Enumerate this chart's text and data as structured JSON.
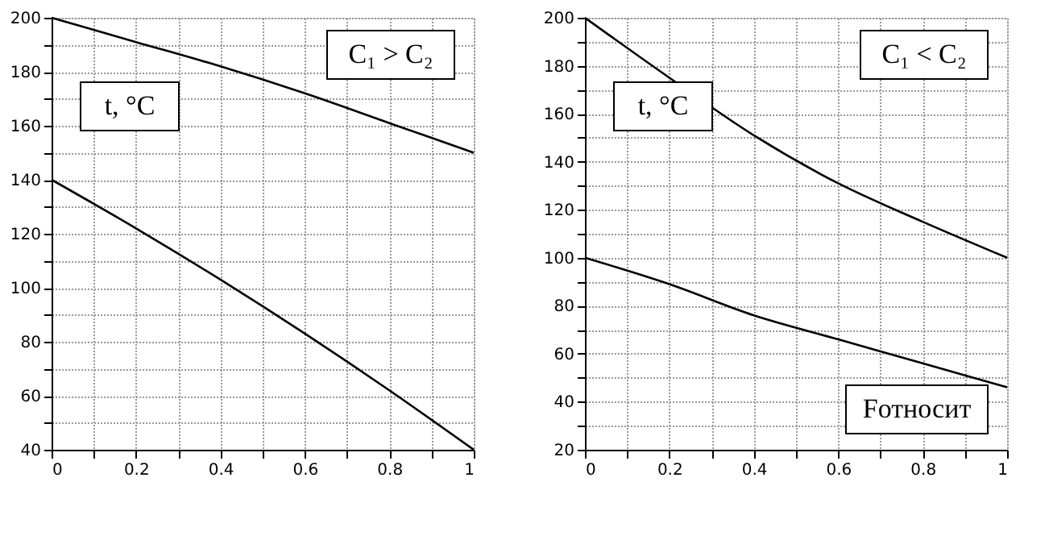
{
  "chart_data": [
    {
      "type": "line",
      "annotations": [
        "C₁ > C₂"
      ],
      "ylabel": "t, °C",
      "x": [
        0,
        0.2,
        0.4,
        0.6,
        0.8,
        1
      ],
      "series": [
        {
          "color": "#000000",
          "values": [
            200,
            191,
            182,
            172,
            161,
            150
          ]
        },
        {
          "color": "#000000",
          "values": [
            140,
            122,
            103,
            83,
            62,
            40
          ]
        }
      ],
      "xlim": [
        0,
        1
      ],
      "ylim": [
        40,
        200
      ],
      "xticks": [
        0,
        {
          "value": 0.1,
          "label": null
        },
        0.2,
        {
          "value": 0.3,
          "label": null
        },
        0.4,
        {
          "value": 0.5,
          "label": null
        },
        0.6,
        {
          "value": 0.7,
          "label": null
        },
        0.8,
        {
          "value": 0.9,
          "label": null
        },
        1
      ],
      "yticks": [
        40,
        {
          "value": 50,
          "label": null
        },
        60,
        {
          "value": 70,
          "label": null
        },
        80,
        {
          "value": 90,
          "label": null
        },
        100,
        {
          "value": 110,
          "label": null
        },
        120,
        {
          "value": 130,
          "label": null
        },
        140,
        {
          "value": 150,
          "label": null
        },
        160,
        {
          "value": 170,
          "label": null
        },
        180,
        {
          "value": 190,
          "label": null
        },
        200
      ],
      "grid": true,
      "line_style": "solid"
    },
    {
      "type": "line",
      "annotations": [
        "C₁ < C₂"
      ],
      "ylabel": "t, °C",
      "xlabel": "Fотносит",
      "x": [
        0,
        0.2,
        0.4,
        0.6,
        0.8,
        1
      ],
      "series": [
        {
          "color": "#000000",
          "values": [
            200,
            175,
            151,
            131,
            115,
            100
          ]
        },
        {
          "color": "#000000",
          "values": [
            100,
            89,
            76,
            66,
            56,
            46
          ]
        }
      ],
      "xlim": [
        0,
        1
      ],
      "ylim": [
        20,
        200
      ],
      "xticks": [
        0,
        {
          "value": 0.1,
          "label": null
        },
        0.2,
        {
          "value": 0.3,
          "label": null
        },
        0.4,
        {
          "value": 0.5,
          "label": null
        },
        0.6,
        {
          "value": 0.7,
          "label": null
        },
        0.8,
        {
          "value": 0.9,
          "label": null
        },
        1
      ],
      "yticks": [
        20,
        {
          "value": 30,
          "label": null
        },
        40,
        {
          "value": 50,
          "label": null
        },
        60,
        {
          "value": 70,
          "label": null
        },
        80,
        {
          "value": 90,
          "label": null
        },
        100,
        {
          "value": 110,
          "label": null
        },
        120,
        {
          "value": 130,
          "label": null
        },
        140,
        {
          "value": 150,
          "label": null
        },
        160,
        {
          "value": 170,
          "label": null
        },
        180,
        {
          "value": 190,
          "label": null
        },
        200
      ],
      "grid": true,
      "line_style": "solid"
    }
  ]
}
